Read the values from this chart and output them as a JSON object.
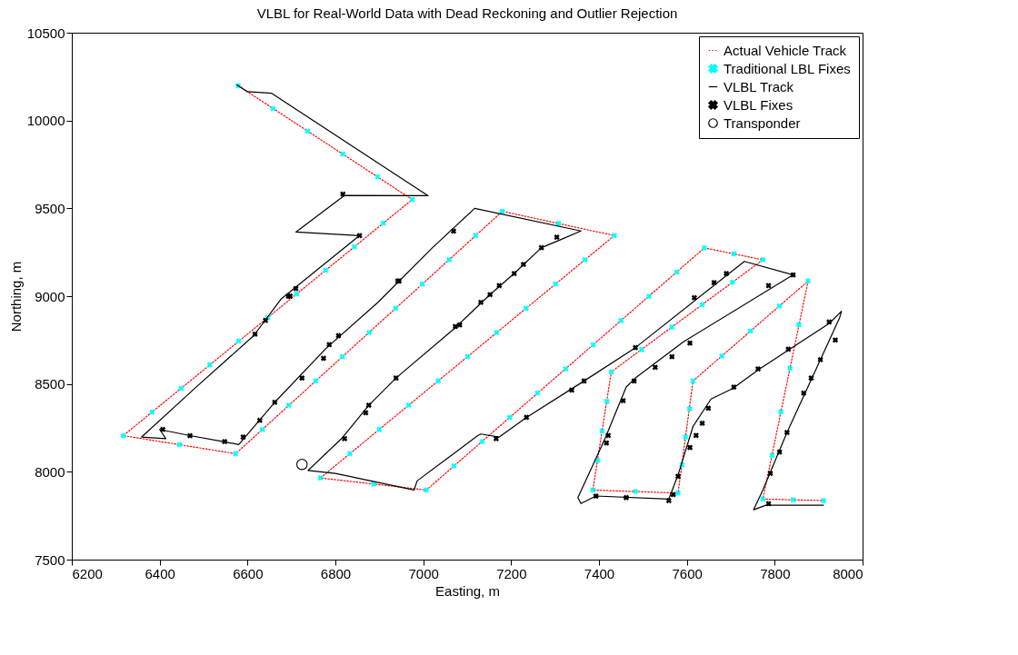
{
  "chart_data": {
    "type": "scatter",
    "title": "VLBL for Real-World Data with Dead Reckoning and Outlier Rejection",
    "xlabel": "Easting, m",
    "ylabel": "Northing, m",
    "xlim": [
      6200,
      8000
    ],
    "xticks": [
      6200,
      6400,
      6600,
      6800,
      7000,
      7200,
      7400,
      7600,
      7800,
      8000
    ],
    "ylim": [
      7500,
      10500
    ],
    "yticks": [
      7500,
      8000,
      8500,
      9000,
      9500,
      10000,
      10500
    ],
    "grid": false,
    "legend": "top right",
    "series": [
      {
        "name": "Actual Vehicle Track",
        "type": "line",
        "line_style": "dotted",
        "marker": "none",
        "color": "#ff0000",
        "x": [
          6579,
          6975,
          6317,
          6573,
          7180,
          7435,
          6766,
          7007,
          7640,
          7773,
          7428,
          7386,
          7580,
          7614,
          7876,
          7773,
          7911
        ],
        "values": [
          10198,
          9550,
          8206,
          8103,
          9483,
          9345,
          7965,
          7896,
          9275,
          9207,
          8569,
          7896,
          7879,
          8517,
          9086,
          7845,
          7836
        ]
      },
      {
        "name": "Traditional LBL Fixes",
        "marker": "cross",
        "color": "#00ffff",
        "x": [
          6579,
          6658,
          6737,
          6817,
          6896,
          6975,
          6909,
          6843,
          6778,
          6712,
          6646,
          6580,
          6514,
          6449,
          6383,
          6317,
          6445,
          6573,
          6634,
          6694,
          6755,
          6816,
          6877,
          6937,
          6998,
          7059,
          7119,
          7180,
          7308,
          7435,
          7368,
          7301,
          7234,
          7167,
          7101,
          7034,
          6967,
          6900,
          6833,
          6766,
          6887,
          7007,
          7070,
          7134,
          7197,
          7260,
          7324,
          7387,
          7450,
          7514,
          7577,
          7640,
          7707,
          7773,
          7704,
          7635,
          7566,
          7497,
          7428,
          7418,
          7407,
          7397,
          7386,
          7483,
          7580,
          7589,
          7597,
          7606,
          7614,
          7680,
          7745,
          7811,
          7876,
          7855,
          7835,
          7814,
          7794,
          7773,
          7842,
          7911
        ],
        "values": [
          10198,
          10068,
          9939,
          9809,
          9680,
          9550,
          9416,
          9281,
          9147,
          9012,
          8878,
          8744,
          8609,
          8475,
          8340,
          8206,
          8155,
          8103,
          8241,
          8379,
          8517,
          8655,
          8793,
          8931,
          9069,
          9207,
          9345,
          9483,
          9414,
          9345,
          9207,
          9069,
          8931,
          8793,
          8655,
          8517,
          8379,
          8241,
          8103,
          7965,
          7931,
          7896,
          8034,
          8172,
          8310,
          8448,
          8586,
          8723,
          8861,
          8999,
          9137,
          9275,
          9241,
          9207,
          9079,
          8951,
          8824,
          8696,
          8569,
          8401,
          8232,
          8064,
          7896,
          7888,
          7879,
          8039,
          8198,
          8358,
          8517,
          8659,
          8802,
          8944,
          9086,
          8838,
          8590,
          8341,
          8093,
          7845,
          7841,
          7836
        ]
      },
      {
        "name": "VLBL Track",
        "type": "line",
        "line_style": "solid",
        "marker": "none",
        "color": "#000000",
        "x": [
          6576,
          6600,
          6655,
          7011,
          6821,
          6710,
          6855,
          6676,
          6614,
          6483,
          6359,
          6414,
          6400,
          6469,
          6545,
          6580,
          6662,
          6780,
          6897,
          7021,
          7117,
          7359,
          7310,
          7269,
          7207,
          7152,
          7083,
          7076,
          6938,
          6876,
          6814,
          6738,
          6800,
          6979,
          6986,
          7124,
          7131,
          7173,
          7235,
          7366,
          7483,
          7731,
          7842,
          7593,
          7483,
          7462,
          7414,
          7352,
          7359,
          7393,
          7559,
          7580,
          7614,
          7655,
          7704,
          7766,
          7924,
          7952,
          7948,
          7904,
          7828,
          7773,
          7752,
          7780,
          7911
        ],
        "values": [
          10203,
          10164,
          10155,
          9572,
          9574,
          9365,
          9345,
          8983,
          8775,
          8482,
          8198,
          8189,
          8241,
          8206,
          8172,
          8155,
          8396,
          8706,
          8965,
          9276,
          9500,
          9371,
          9319,
          9276,
          9129,
          9009,
          8845,
          8827,
          8534,
          8379,
          8189,
          8008,
          7991,
          7896,
          7948,
          8206,
          8215,
          8198,
          8310,
          8517,
          8707,
          9198,
          9121,
          8741,
          8534,
          8483,
          8190,
          7853,
          7819,
          7862,
          7845,
          7982,
          8258,
          8414,
          8474,
          8586,
          8845,
          8914,
          8879,
          8638,
          8224,
          7896,
          7784,
          7810,
          7810
        ]
      },
      {
        "name": "VLBL Fixes",
        "marker": "cross",
        "color": "#000000",
        "x": [
          6817,
          7069,
          6945,
          6855,
          6710,
          6693,
          6641,
          6617,
          6697,
          6407,
          6469,
          6548,
          6590,
          6628,
          6662,
          6724,
          6773,
          6786,
          6807,
          6942,
          7073,
          6938,
          6876,
          6869,
          6821,
          7304,
          7269,
          7228,
          7207,
          7173,
          7152,
          7131,
          7083,
          7166,
          7235,
          7338,
          7366,
          7483,
          7617,
          7662,
          7690,
          7786,
          7842,
          7607,
          7566,
          7528,
          7480,
          7455,
          7421,
          7417,
          7393,
          7462,
          7559,
          7569,
          7580,
          7607,
          7621,
          7635,
          7649,
          7707,
          7762,
          7831,
          7924,
          7938,
          7904,
          7883,
          7866,
          7828,
          7811,
          7790,
          7786
        ],
        "values": [
          9581,
          9370,
          9086,
          9345,
          9043,
          9000,
          8862,
          8784,
          9000,
          8241,
          8206,
          8172,
          8198,
          8293,
          8396,
          8534,
          8646,
          8724,
          8775,
          9086,
          8827,
          8534,
          8379,
          8336,
          8189,
          9336,
          9276,
          9181,
          9129,
          9060,
          9009,
          8965,
          8836,
          8189,
          8310,
          8465,
          8517,
          8707,
          8991,
          9077,
          9129,
          9060,
          9121,
          8733,
          8655,
          8595,
          8517,
          8405,
          8207,
          8164,
          7862,
          7853,
          7836,
          7870,
          7974,
          8138,
          8207,
          8276,
          8362,
          8482,
          8586,
          8698,
          8853,
          8750,
          8638,
          8534,
          8448,
          8224,
          8112,
          7991,
          7819
        ]
      },
      {
        "name": "Transponder",
        "marker": "circle",
        "color": "#000000",
        "x": [
          6724
        ],
        "values": [
          8042
        ]
      }
    ]
  }
}
